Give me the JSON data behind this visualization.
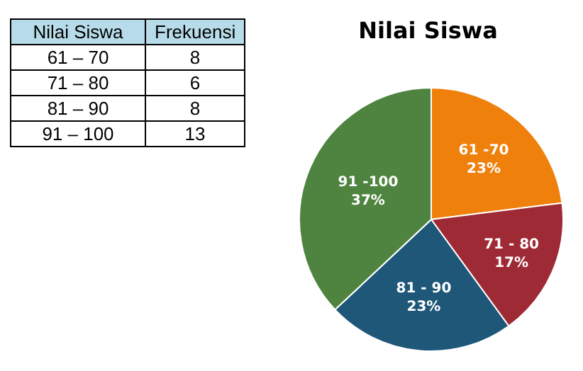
{
  "chart_data": [
    {
      "type": "other",
      "xlabel": "Nilai Siswa",
      "ylabel": "Frekuensi",
      "categories": [
        "61 – 70",
        "71 – 80",
        "81 – 90",
        "91 – 100"
      ],
      "values": [
        8,
        6,
        8,
        13
      ],
      "data_labels": true
    },
    {
      "type": "pie",
      "title": "Nilai Siswa",
      "categories": [
        "61 -70",
        "71 - 80",
        "81 - 90",
        "91 -100"
      ],
      "values": [
        23,
        17,
        23,
        37
      ],
      "value_labels": [
        "23%",
        "17%",
        "23%",
        "37%"
      ],
      "colors": [
        "#ef800c",
        "#9e2a35",
        "#1e5778",
        "#4f8440"
      ]
    }
  ]
}
